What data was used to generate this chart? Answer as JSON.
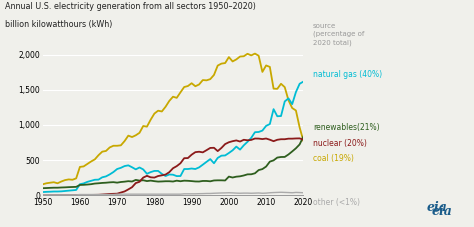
{
  "title_line1": "Annual U.S. electricity generation from all sectors 1950–2020)",
  "title_line2": "billion kilowatthours (kWh)",
  "years": [
    1950,
    1951,
    1952,
    1953,
    1954,
    1955,
    1956,
    1957,
    1958,
    1959,
    1960,
    1961,
    1962,
    1963,
    1964,
    1965,
    1966,
    1967,
    1968,
    1969,
    1970,
    1971,
    1972,
    1973,
    1974,
    1975,
    1976,
    1977,
    1978,
    1979,
    1980,
    1981,
    1982,
    1983,
    1984,
    1985,
    1986,
    1987,
    1988,
    1989,
    1990,
    1991,
    1992,
    1993,
    1994,
    1995,
    1996,
    1997,
    1998,
    1999,
    2000,
    2001,
    2002,
    2003,
    2004,
    2005,
    2006,
    2007,
    2008,
    2009,
    2010,
    2011,
    2012,
    2013,
    2014,
    2015,
    2016,
    2017,
    2018,
    2019,
    2020
  ],
  "coal": [
    155,
    170,
    178,
    185,
    170,
    195,
    215,
    225,
    220,
    240,
    403,
    410,
    445,
    480,
    510,
    570,
    620,
    630,
    680,
    704,
    704,
    710,
    771,
    848,
    828,
    853,
    888,
    985,
    976,
    1075,
    1162,
    1203,
    1192,
    1259,
    1342,
    1402,
    1386,
    1464,
    1540,
    1554,
    1594,
    1551,
    1576,
    1639,
    1635,
    1652,
    1712,
    1845,
    1873,
    1881,
    1966,
    1904,
    1933,
    1974,
    1978,
    2013,
    1990,
    2016,
    1985,
    1755,
    1847,
    1826,
    1517,
    1514,
    1586,
    1538,
    1352,
    1241,
    1206,
    965,
    774
  ],
  "natural_gas": [
    45,
    48,
    50,
    53,
    53,
    55,
    60,
    65,
    70,
    75,
    157,
    168,
    190,
    205,
    220,
    222,
    255,
    268,
    296,
    330,
    373,
    390,
    415,
    425,
    398,
    368,
    395,
    367,
    305,
    329,
    346,
    346,
    304,
    273,
    295,
    292,
    272,
    273,
    373,
    373,
    380,
    373,
    396,
    435,
    475,
    514,
    455,
    531,
    563,
    566,
    601,
    639,
    692,
    649,
    710,
    760,
    816,
    897,
    900,
    920,
    987,
    1013,
    1225,
    1124,
    1127,
    1335,
    1378,
    1296,
    1468,
    1586,
    1617
  ],
  "renewables": [
    100,
    102,
    105,
    107,
    107,
    110,
    112,
    115,
    117,
    119,
    146,
    148,
    152,
    157,
    166,
    170,
    175,
    178,
    183,
    186,
    179,
    188,
    193,
    200,
    195,
    218,
    208,
    213,
    201,
    208,
    200,
    194,
    196,
    199,
    199,
    195,
    207,
    199,
    207,
    205,
    201,
    196,
    195,
    203,
    203,
    198,
    210,
    212,
    212,
    210,
    265,
    252,
    264,
    269,
    281,
    297,
    298,
    312,
    358,
    372,
    408,
    478,
    496,
    536,
    544,
    545,
    580,
    623,
    668,
    723,
    834
  ],
  "nuclear": [
    0,
    0,
    0,
    0,
    0,
    0,
    0,
    0,
    0,
    0,
    1,
    2,
    3,
    4,
    5,
    6,
    10,
    14,
    18,
    20,
    22,
    38,
    54,
    83,
    114,
    173,
    191,
    251,
    276,
    255,
    251,
    273,
    283,
    294,
    328,
    384,
    414,
    455,
    527,
    529,
    577,
    613,
    619,
    610,
    641,
    673,
    675,
    628,
    673,
    728,
    754,
    769,
    780,
    764,
    789,
    782,
    787,
    807,
    806,
    799,
    807,
    790,
    769,
    789,
    797,
    797,
    805,
    805,
    808,
    809,
    790
  ],
  "other": [
    5,
    5,
    5,
    5,
    5,
    5,
    5,
    5,
    5,
    5,
    10,
    10,
    10,
    10,
    10,
    10,
    10,
    10,
    10,
    10,
    15,
    15,
    15,
    15,
    15,
    15,
    15,
    15,
    15,
    15,
    15,
    15,
    15,
    15,
    15,
    15,
    15,
    15,
    20,
    20,
    20,
    20,
    22,
    23,
    25,
    25,
    28,
    30,
    32,
    33,
    35,
    33,
    30,
    28,
    30,
    30,
    28,
    30,
    32,
    28,
    30,
    35,
    38,
    40,
    42,
    40,
    38,
    35,
    40,
    38,
    35
  ],
  "coal_color": "#c8a800",
  "natural_gas_color": "#00bcd4",
  "renewables_color": "#2e5e1e",
  "nuclear_color": "#8b1a1a",
  "other_color": "#aaaaaa",
  "bg_color": "#f0f0eb",
  "ylim": [
    0,
    2100
  ],
  "yticks": [
    0,
    500,
    1000,
    1500,
    2000
  ],
  "ytick_labels": [
    "0",
    "500",
    "1,000",
    "1,500",
    "2,000"
  ],
  "xticks": [
    1950,
    1960,
    1970,
    1980,
    1990,
    2000,
    2010,
    2020
  ]
}
